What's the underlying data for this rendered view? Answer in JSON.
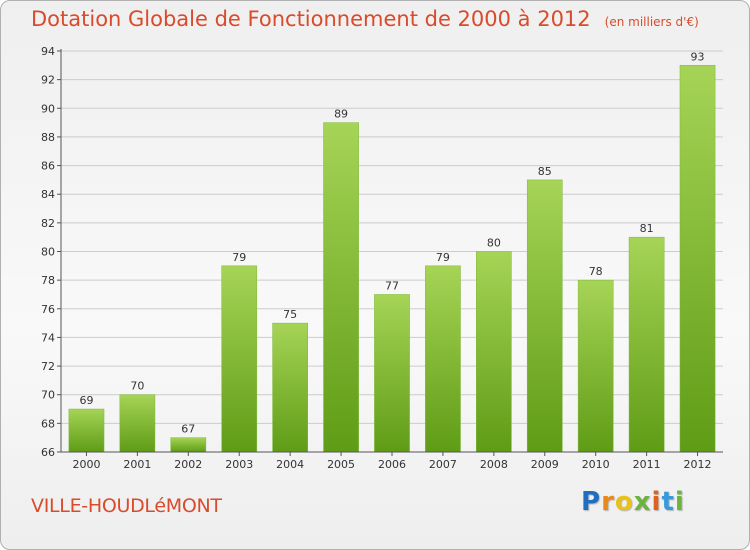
{
  "page": {
    "title": "Dotation Globale de Fonctionnement de 2000 à 2012",
    "subtitle": "(en milliers d'€)",
    "commune": "VILLE-HOUDLéMONT",
    "logo": [
      "P",
      "r",
      "o",
      "x",
      "i",
      "t",
      "i"
    ]
  },
  "colors": {
    "title": "#d94b2b",
    "bar_light": "#a6d456",
    "bar_dark": "#5f9c16",
    "grid": "#cccccc",
    "axis": "#555555"
  },
  "chart_data": {
    "type": "bar",
    "title": "Dotation Globale de Fonctionnement de 2000 à 2012",
    "subtitle": "(en milliers d'€)",
    "xlabel": "",
    "ylabel": "",
    "categories": [
      "2000",
      "2001",
      "2002",
      "2003",
      "2004",
      "2005",
      "2006",
      "2007",
      "2008",
      "2009",
      "2010",
      "2011",
      "2012"
    ],
    "values": [
      69,
      70,
      67,
      79,
      75,
      89,
      77,
      79,
      80,
      85,
      78,
      81,
      93
    ],
    "ylim": [
      66,
      94
    ],
    "yticks": [
      66,
      68,
      70,
      72,
      74,
      76,
      78,
      80,
      82,
      84,
      86,
      88,
      90,
      92,
      94
    ],
    "grid": true,
    "legend": "none"
  }
}
